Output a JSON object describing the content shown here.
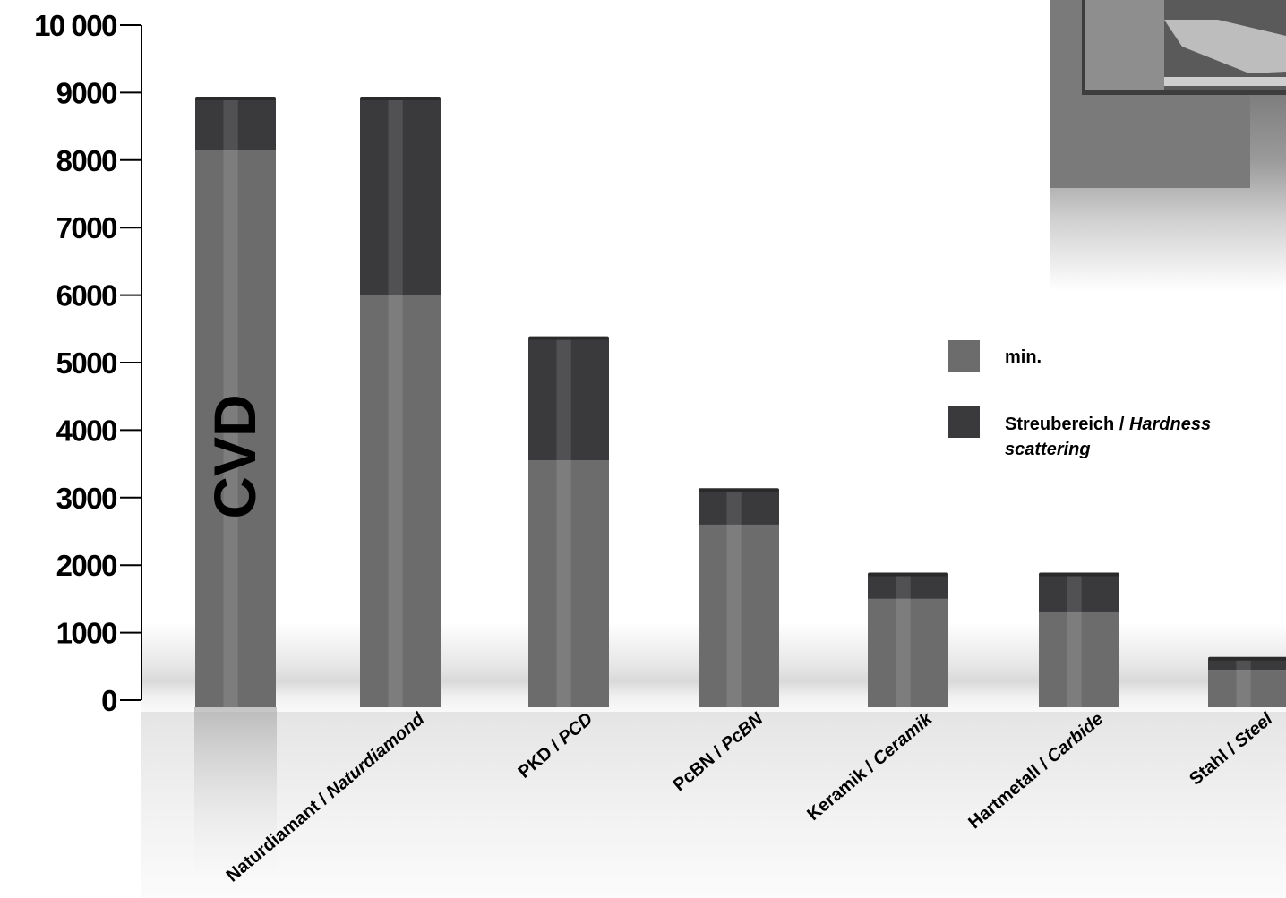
{
  "chart_data": {
    "type": "bar",
    "stacked": true,
    "categories": [
      {
        "key": "cvd",
        "line1": "",
        "line1_italic": "",
        "line2": "",
        "line2_italic": "",
        "bar_text": "CVD"
      },
      {
        "key": "naturdiamant",
        "line1": "Naturdiamant / ",
        "line1_italic": "",
        "line2": "",
        "line2_italic": "Naturdiamond",
        "bar_text": ""
      },
      {
        "key": "pkd",
        "line1": "PKD / ",
        "line1_italic": "PCD",
        "line2": "",
        "line2_italic": "",
        "bar_text": ""
      },
      {
        "key": "pcbn",
        "line1": "PcBN / ",
        "line1_italic": "PcBN",
        "line2": "",
        "line2_italic": "",
        "bar_text": ""
      },
      {
        "key": "keramik",
        "line1": "Keramik / ",
        "line1_italic": "Ceramik",
        "line2": "",
        "line2_italic": "",
        "bar_text": ""
      },
      {
        "key": "hartmetall",
        "line1": "Hartmetall / ",
        "line1_italic": "Carbide",
        "line2": "",
        "line2_italic": "",
        "bar_text": ""
      },
      {
        "key": "stahl",
        "line1": "Stahl / ",
        "line1_italic": "Steel",
        "line2": "",
        "line2_italic": "",
        "bar_text": ""
      }
    ],
    "series": [
      {
        "name": "min.",
        "color": "#6c6c6c",
        "values": [
          8150,
          6000,
          3550,
          2600,
          1500,
          1300,
          450
        ]
      },
      {
        "name_plain": "Streubereich / ",
        "name_italic": "Hardness scattering",
        "color": "#3a3a3c",
        "values": [
          750,
          2900,
          1800,
          500,
          350,
          550,
          150
        ]
      }
    ],
    "yticks": [
      "0",
      "1000",
      "2000",
      "3000",
      "4000",
      "5000",
      "6000",
      "7000",
      "8000",
      "9000",
      "10 000"
    ],
    "ylim": [
      0,
      10000
    ],
    "grid": false,
    "legend_position": "right"
  }
}
